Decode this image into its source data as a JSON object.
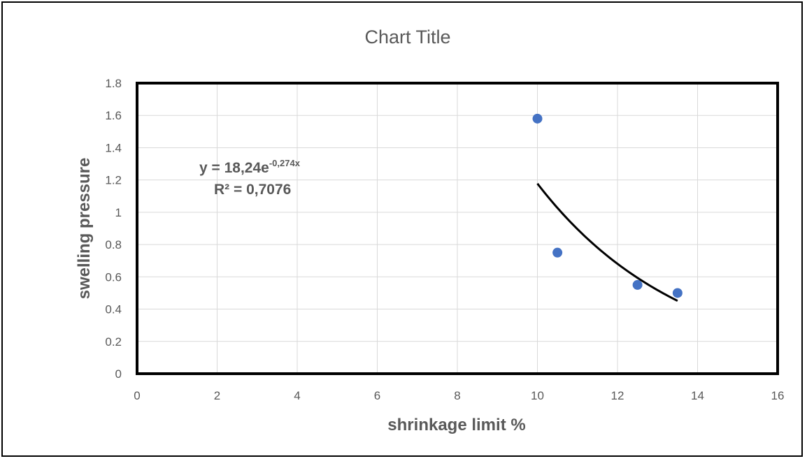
{
  "chart_data": {
    "type": "scatter",
    "title": "Chart Title",
    "xlabel": "shrinkage limit  %",
    "ylabel": "swelling pressure",
    "xlim": [
      0,
      16
    ],
    "ylim": [
      0,
      1.8
    ],
    "xticks": [
      "0",
      "2",
      "4",
      "6",
      "8",
      "10",
      "12",
      "14",
      "16"
    ],
    "yticks": [
      "0",
      "0.2",
      "0.4",
      "0.6",
      "0.8",
      "1",
      "1.2",
      "1.4",
      "1.6",
      "1.8"
    ],
    "grid": true,
    "point_color": "#4472C4",
    "trendline_color": "#000000",
    "points": [
      {
        "x": 10,
        "y": 1.58
      },
      {
        "x": 10.5,
        "y": 0.75
      },
      {
        "x": 12.5,
        "y": 0.55
      },
      {
        "x": 13.5,
        "y": 0.5
      }
    ],
    "trendline": {
      "type": "exponential",
      "a": 18.24,
      "b": -0.274,
      "x_range": [
        10,
        13.5
      ],
      "equation_prefix": "y = 18,24e",
      "equation_exponent": "-0,274x",
      "r2_label": "R² = 0,7076"
    }
  }
}
